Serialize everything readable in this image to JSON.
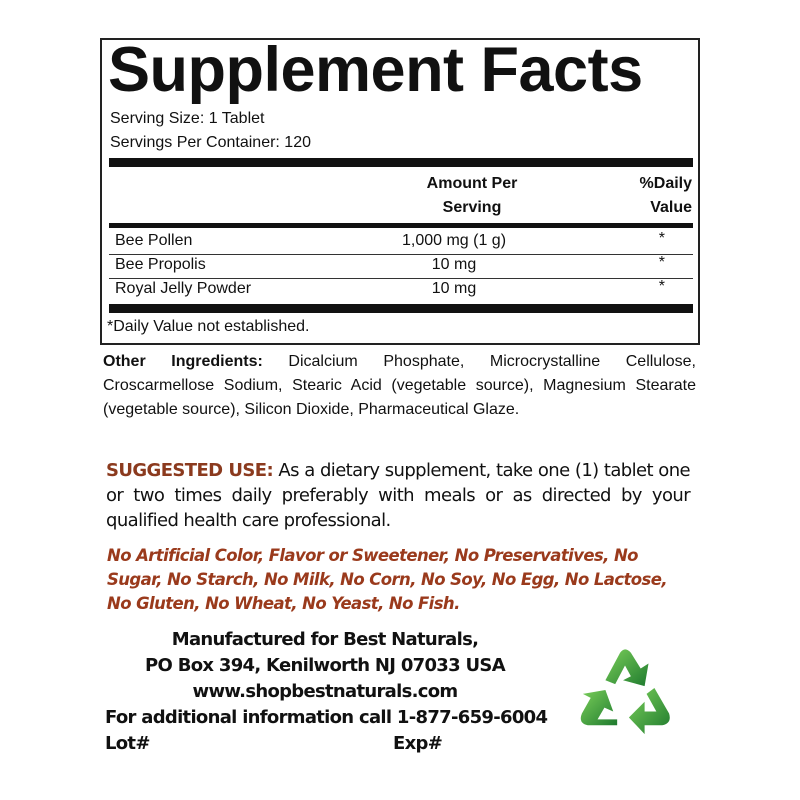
{
  "panel": {
    "title": "Supplement Facts",
    "serving_size": "Serving Size: 1 Tablet",
    "servings_per_container": "Servings Per Container: 120",
    "col_amount_line1": "Amount Per",
    "col_amount_line2": "Serving",
    "col_dv_line1": "%Daily",
    "col_dv_line2": "Value",
    "rows": [
      {
        "name": "Bee Pollen",
        "amount": "1,000 mg (1 g)",
        "dv": "*"
      },
      {
        "name": "Bee Propolis",
        "amount": "10 mg",
        "dv": "*"
      },
      {
        "name": "Royal Jelly Powder",
        "amount": "10 mg",
        "dv": "*"
      }
    ],
    "footnote": "*Daily Value not established."
  },
  "other_ingredients": {
    "label": "Other Ingredients:",
    "text": " Dicalcium Phosphate, Microcrystalline Cellulose, Croscarmellose Sodium, Stearic Acid (vegetable source), Magnesium Stearate (vegetable source), Silicon Dioxide, Pharmaceutical Glaze."
  },
  "suggested_use": {
    "label": "SUGGESTED USE:",
    "text": " As a dietary supplement, take one (1) tablet one or two times daily preferably with meals or as directed by your qualified health care professional."
  },
  "free_from": "No Artificial Color, Flavor or Sweetener, No Preservatives, No Sugar, No Starch, No Milk, No Corn, No Soy, No Egg, No Lactose, No Gluten, No Wheat, No Yeast, No Fish.",
  "manufacturer": {
    "line1": "Manufactured for Best Naturals,",
    "line2": "PO Box 394, Kenilworth NJ 07033 USA",
    "website": "www.shopbestnaturals.com",
    "phone": "For additional information call 1-877-659-6004",
    "lot": "Lot#",
    "exp": "Exp#"
  },
  "colors": {
    "accent": "#8b3a1e",
    "recycle_green": "#3a9a3a"
  },
  "icons": {
    "recycle": "recycle-icon"
  }
}
